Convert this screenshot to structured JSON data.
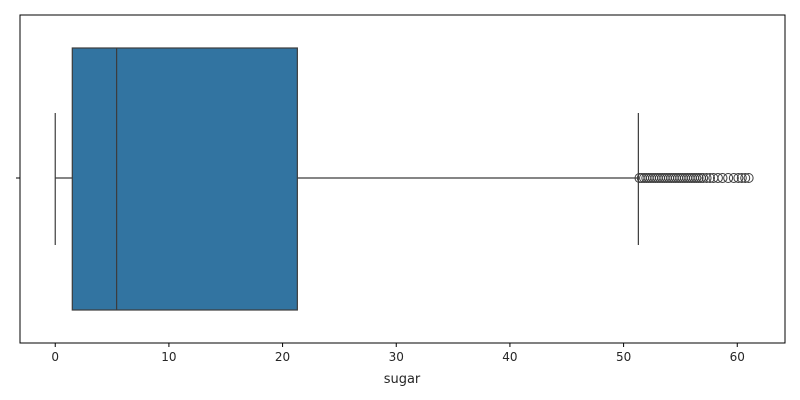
{
  "chart_data": {
    "type": "box",
    "orientation": "horizontal",
    "xlabel": "sugar",
    "ylabel": "",
    "xlim": [
      -3.1,
      64.2
    ],
    "xticks": [
      0,
      10,
      20,
      30,
      40,
      50,
      60
    ],
    "grid": false,
    "legend": "none",
    "box_color": "#3274a1",
    "line_color": "#3c3c3c",
    "series": [
      {
        "whisker_low": 0.0,
        "q1": 1.5,
        "median": 5.4,
        "q3": 21.3,
        "whisker_high": 51.3,
        "outliers": [
          51.4,
          51.6,
          51.8,
          52.0,
          52.2,
          52.4,
          52.6,
          52.8,
          53.0,
          53.2,
          53.4,
          53.6,
          53.8,
          54.0,
          54.2,
          54.4,
          54.6,
          54.8,
          55.0,
          55.2,
          55.4,
          55.6,
          55.8,
          56.0,
          56.2,
          56.4,
          56.6,
          56.8,
          57.0,
          57.3,
          57.6,
          57.9,
          58.3,
          58.7,
          59.2,
          59.7,
          60.1,
          60.4,
          60.7,
          61.0
        ]
      }
    ]
  }
}
